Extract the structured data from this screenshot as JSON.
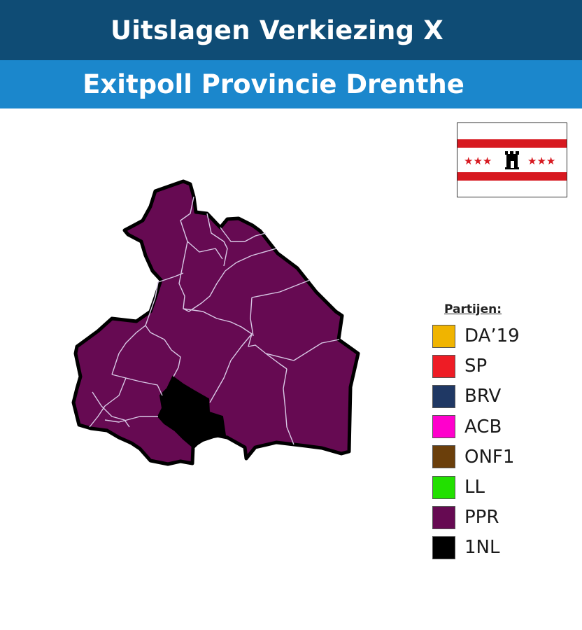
{
  "header": {
    "title": "Uitslagen Verkiezing X",
    "subtitle": "Exitpoll Provincie Drenthe"
  },
  "flag": {
    "name": "Drenthe",
    "colors": {
      "red": "#d71920",
      "white": "#ffffff",
      "black": "#000000"
    }
  },
  "map": {
    "province": "Drenthe",
    "dominant_party": "PPR",
    "municipality_results": [
      {
        "region": "municipality-north-1",
        "party": "PPR"
      },
      {
        "region": "municipality-north-2",
        "party": "PPR"
      },
      {
        "region": "municipality-north-3",
        "party": "PPR"
      },
      {
        "region": "municipality-northeast",
        "party": "PPR"
      },
      {
        "region": "municipality-east",
        "party": "PPR"
      },
      {
        "region": "municipality-central",
        "party": "PPR"
      },
      {
        "region": "municipality-west",
        "party": "PPR"
      },
      {
        "region": "municipality-southwest-1",
        "party": "PPR"
      },
      {
        "region": "municipality-southwest-2",
        "party": "PPR"
      },
      {
        "region": "municipality-south",
        "party": "1NL"
      },
      {
        "region": "municipality-southeast",
        "party": "PPR"
      },
      {
        "region": "municipality-far-east",
        "party": "PPR"
      }
    ]
  },
  "legend": {
    "title": "Partijen:",
    "items": [
      {
        "label": "DA’19",
        "color": "#f0b400"
      },
      {
        "label": "SP",
        "color": "#ee1c25"
      },
      {
        "label": "BRV",
        "color": "#1f3864"
      },
      {
        "label": "ACB",
        "color": "#ff00cc"
      },
      {
        "label": "ONF1",
        "color": "#6b3f0b"
      },
      {
        "label": "LL",
        "color": "#22e000"
      },
      {
        "label": "PPR",
        "color": "#660a52"
      },
      {
        "label": "1NL",
        "color": "#000000"
      }
    ]
  }
}
